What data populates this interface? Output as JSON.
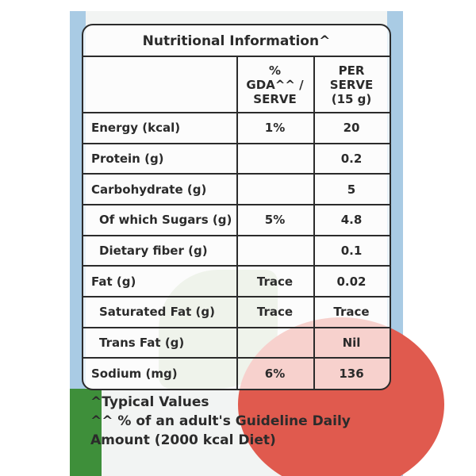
{
  "title": "Nutritional Information^",
  "header": {
    "gda": "% GDA^^ / SERVE",
    "per_serve": "PER SERVE (15 g)"
  },
  "table": {
    "rows": [
      {
        "label": "Energy (kcal)",
        "gda": "1%",
        "per_serve": "20"
      },
      {
        "label": "Protein (g)",
        "per_serve": "0.2"
      },
      {
        "label": "Carbohydrate (g)",
        "per_serve": "5"
      },
      {
        "label": "Of which Sugars (g)",
        "gda": "5%",
        "per_serve": "4.8"
      },
      {
        "label": "Dietary fiber (g)",
        "per_serve": "0.1"
      },
      {
        "label": "Fat (g)",
        "gda": "Trace",
        "per_serve": "0.02"
      },
      {
        "label": "Saturated Fat (g)",
        "gda": "Trace",
        "per_serve": "Trace"
      },
      {
        "label": "Trans Fat (g)",
        "per_serve": "Nil"
      },
      {
        "label": "Sodium (mg)",
        "gda": "6%",
        "per_serve": "136"
      }
    ]
  },
  "footnotes": [
    "^Typical Values",
    "^^ % of an adult's Guideline Daily Amount (2000 kcal Diet)"
  ]
}
